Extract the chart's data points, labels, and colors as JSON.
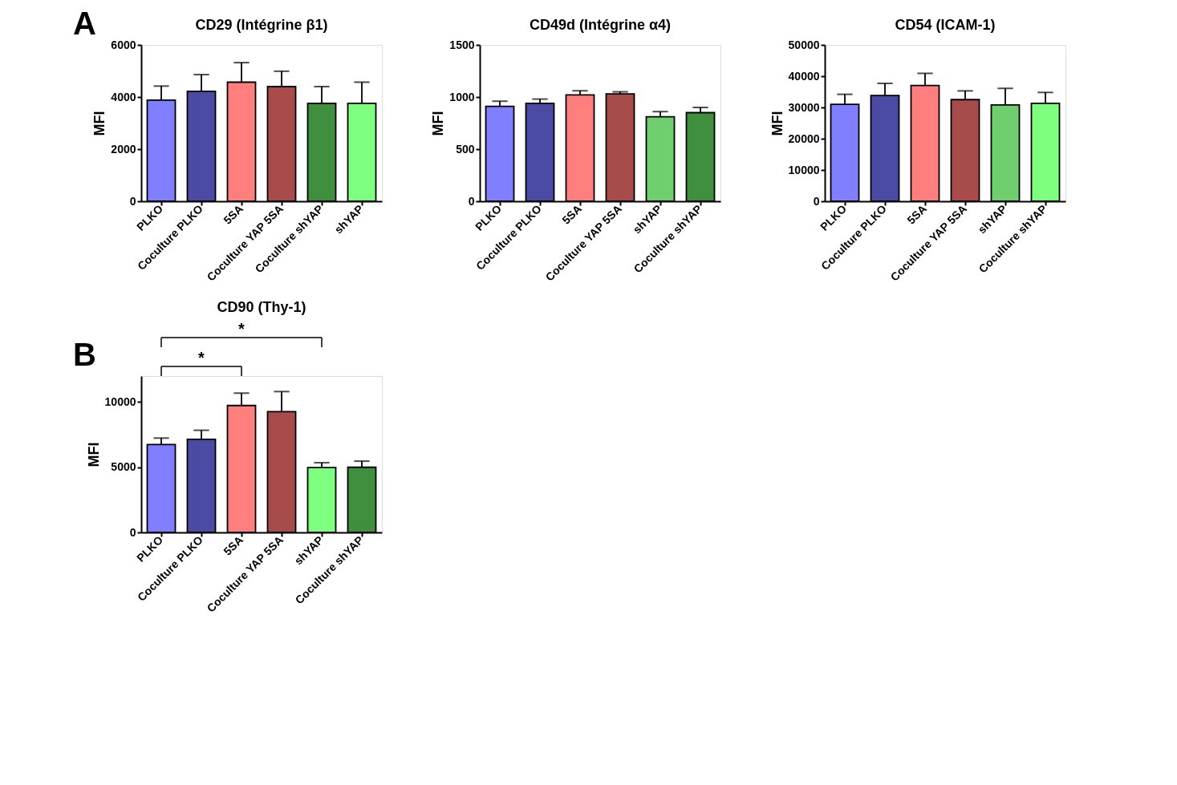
{
  "chart_data": [
    {
      "type": "bar",
      "title": "CD29 (Intégrine β1)",
      "ylabel": "MFI",
      "annotations": [
        "A"
      ],
      "categories": [
        "PLKO",
        "Coculture PLKO",
        "5SA",
        "Coculture YAP 5SA",
        "Coculture shYAP",
        "shYAP"
      ],
      "values": [
        3880,
        4220,
        4570,
        4400,
        3760,
        3760
      ],
      "errors": [
        [
          3880,
          4420
        ],
        [
          4220,
          4860
        ],
        [
          4570,
          5320
        ],
        [
          4400,
          4990
        ],
        [
          3760,
          4400
        ],
        [
          3760,
          4570
        ]
      ],
      "colors": [
        "#7f7fff",
        "#4b4ba6",
        "#ff7f7f",
        "#a84b4b",
        "#3f8f3f",
        "#7fff7f"
      ],
      "ylim": [
        0,
        6000
      ],
      "yticks": [
        0,
        2000,
        4000,
        6000
      ]
    },
    {
      "type": "bar",
      "title": "CD49d (Intégrine α4)",
      "ylabel": "MFI",
      "categories": [
        "PLKO",
        "Coculture PLKO",
        "5SA",
        "Coculture YAP 5SA",
        "shYAP",
        "Coculture shYAP"
      ],
      "values": [
        910,
        940,
        1020,
        1030,
        810,
        850
      ],
      "errors": [
        [
          910,
          960
        ],
        [
          940,
          980
        ],
        [
          1020,
          1060
        ],
        [
          1030,
          1050
        ],
        [
          810,
          860
        ],
        [
          850,
          900
        ]
      ],
      "colors": [
        "#7f7fff",
        "#4b4ba6",
        "#ff7f7f",
        "#a84b4b",
        "#6fcf6f",
        "#3f8f3f"
      ],
      "ylim": [
        0,
        1500
      ],
      "yticks": [
        0,
        500,
        1000,
        1500
      ]
    },
    {
      "type": "bar",
      "title": "CD54 (ICAM-1)",
      "ylabel": "MFI",
      "categories": [
        "PLKO",
        "Coculture PLKO",
        "5SA",
        "Coculture YAP 5SA",
        "shYAP",
        "Coculture shYAP"
      ],
      "values": [
        31000,
        33800,
        37000,
        32500,
        30800,
        31300
      ],
      "errors": [
        [
          31000,
          34200
        ],
        [
          33800,
          37700
        ],
        [
          37000,
          40900
        ],
        [
          32500,
          35300
        ],
        [
          30800,
          36100
        ],
        [
          31300,
          34800
        ]
      ],
      "colors": [
        "#7f7fff",
        "#4b4ba6",
        "#ff7f7f",
        "#a84b4b",
        "#6fcf6f",
        "#7fff7f"
      ],
      "ylim": [
        0,
        50000
      ],
      "yticks": [
        0,
        10000,
        20000,
        30000,
        40000,
        50000
      ]
    },
    {
      "type": "bar",
      "title": "CD90 (Thy-1)",
      "ylabel": "MFI",
      "annotations": [
        "B",
        "*",
        "*"
      ],
      "categories": [
        "PLKO",
        "Coculture PLKO",
        "5SA",
        "Coculture YAP 5SA",
        "shYAP",
        "Coculture shYAP"
      ],
      "values": [
        6750,
        7150,
        9740,
        9270,
        4980,
        5000
      ],
      "errors": [
        [
          6750,
          7240
        ],
        [
          7150,
          7840
        ],
        [
          9740,
          10690
        ],
        [
          9270,
          10810
        ],
        [
          4980,
          5350
        ],
        [
          5000,
          5470
        ]
      ],
      "colors": [
        "#7f7fff",
        "#4b4ba6",
        "#ff7f7f",
        "#a84b4b",
        "#7fff7f",
        "#3f8f3f"
      ],
      "ylim": [
        0,
        12000
      ],
      "yticks": [
        0,
        5000,
        10000
      ]
    }
  ]
}
